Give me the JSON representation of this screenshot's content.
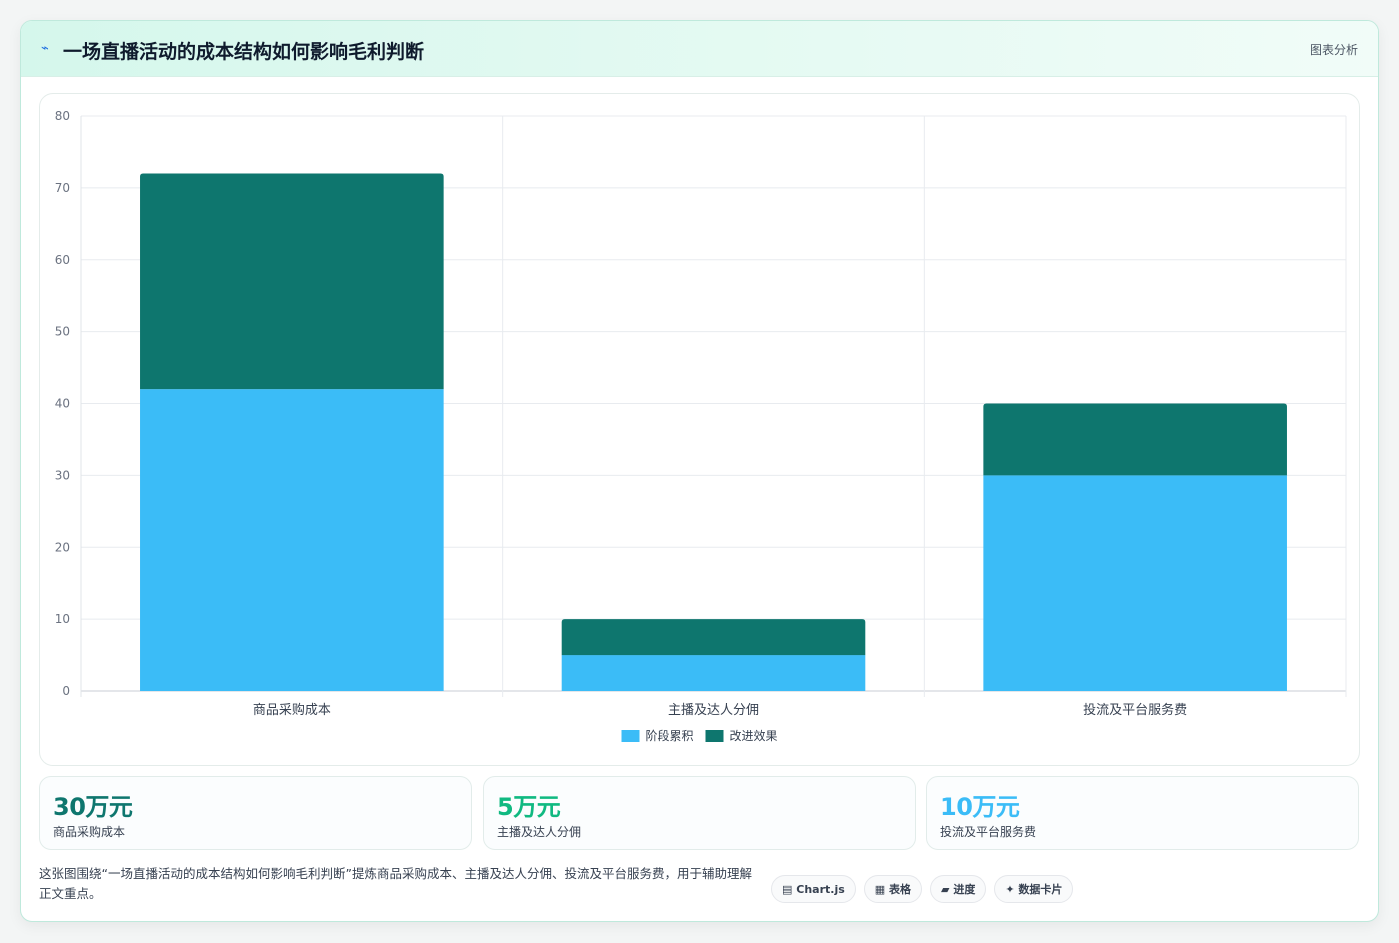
{
  "header": {
    "bolt_icon": "⌁",
    "title": "一场直播活动的成本结构如何影响毛利判断",
    "tag": "图表分析"
  },
  "chart_data": {
    "type": "bar",
    "stacked": true,
    "categories": [
      "商品采购成本",
      "主播及达人分佣",
      "投流及平台服务费"
    ],
    "series": [
      {
        "name": "阶段累积",
        "values": [
          42,
          5,
          30
        ],
        "color": "#3bbcf7"
      },
      {
        "name": "改进效果",
        "values": [
          30,
          5,
          10
        ],
        "color": "#0e766e"
      }
    ],
    "ylim": [
      0,
      80
    ],
    "yticks": [
      0,
      10,
      20,
      30,
      40,
      50,
      60,
      70,
      80
    ],
    "grid": true,
    "legend": "bottom"
  },
  "stats": [
    {
      "value": "30万元",
      "label": "商品采购成本",
      "color": "#0e766e"
    },
    {
      "value": "5万元",
      "label": "主播及达人分佣",
      "color": "#10b981"
    },
    {
      "value": "10万元",
      "label": "投流及平台服务费",
      "color": "#3bbcf7"
    }
  ],
  "caption": "这张图围绕“一场直播活动的成本结构如何影响毛利判断”提炼商品采购成本、主播及达人分佣、投流及平台服务费，用于辅助理解正文重点。",
  "pills": [
    {
      "icon": "▤",
      "label": "Chart.js"
    },
    {
      "icon": "▦",
      "label": "表格"
    },
    {
      "icon": "▰",
      "label": "进度"
    },
    {
      "icon": "✦",
      "label": "数据卡片"
    }
  ]
}
